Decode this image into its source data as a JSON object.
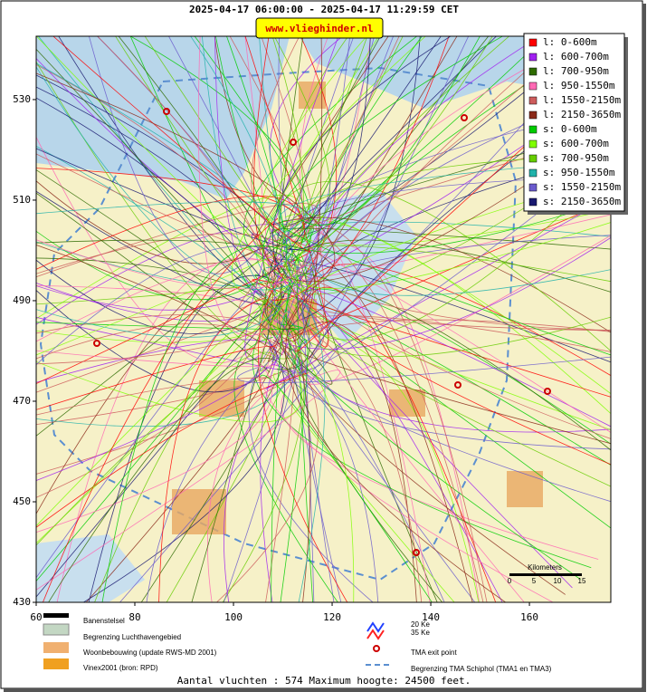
{
  "header": {
    "title": "2025-04-17 06:00:00 - 2025-04-17 11:29:59 CET",
    "link": "www.vlieghinder.nl"
  },
  "map": {
    "xlim": [
      60,
      176.5
    ],
    "ylim": [
      430,
      542.6
    ],
    "xticks": [
      60,
      80,
      100,
      120,
      140,
      160
    ],
    "yticks": [
      430,
      450,
      470,
      490,
      510,
      530
    ]
  },
  "legend": [
    {
      "label": "l: 0-600m",
      "color": "#ff0000"
    },
    {
      "label": "l: 600-700m",
      "color": "#a020f0"
    },
    {
      "label": "l: 700-950m",
      "color": "#2e6b00"
    },
    {
      "label": "l: 950-1550m",
      "color": "#ff69b4"
    },
    {
      "label": "l: 1550-2150m",
      "color": "#cd5c5c"
    },
    {
      "label": "l: 2150-3650m",
      "color": "#8b2a1a"
    },
    {
      "label": "s: 0-600m",
      "color": "#00cc00"
    },
    {
      "label": "s: 600-700m",
      "color": "#7fff00"
    },
    {
      "label": "s: 700-950m",
      "color": "#66cd00"
    },
    {
      "label": "s: 950-1550m",
      "color": "#20b2aa"
    },
    {
      "label": "s: 1550-2150m",
      "color": "#6a5acd"
    },
    {
      "label": "s: 2150-3650m",
      "color": "#191970"
    }
  ],
  "scale_bar": {
    "title": "Kilometers",
    "labels": [
      "0",
      "5",
      "10",
      "15"
    ]
  },
  "bottom_legend": {
    "runways": "Banenstelsel",
    "airport_boundary": "Begrenzing Luchthavengebied",
    "housing": "Woonbebouwing (update RWS-MD 2001)",
    "vinex": "Vinex2001 (bron: RPD)",
    "ke20": "20 Ke",
    "ke35": "35 Ke",
    "tma_exit": "TMA exit point",
    "tma_boundary": "Begrenzing TMA Schiphol  (TMA1 en TMA3)"
  },
  "footer": "Aantal vluchten : 574 Maximum hoogte: 24500 feet."
}
